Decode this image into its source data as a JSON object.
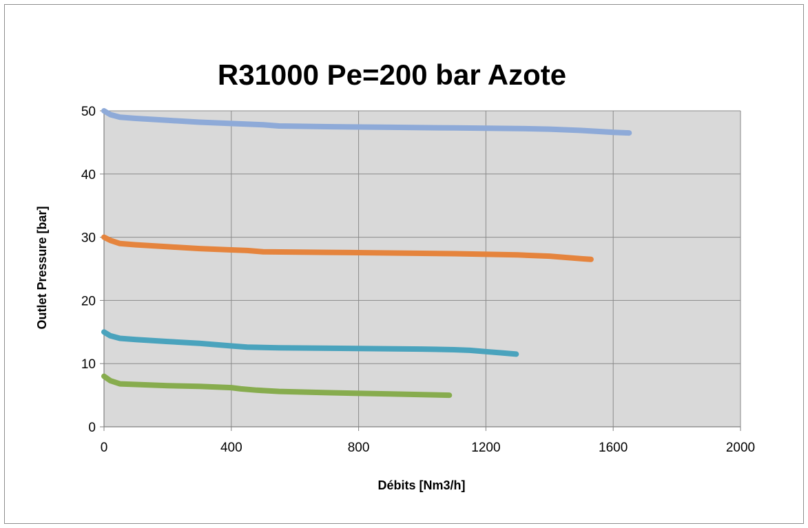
{
  "chart_data": {
    "type": "line",
    "title": "R31000  Pe=200 bar  Azote",
    "xlabel": "Débits [Nm3/h]",
    "ylabel": "Outlet Pressure [bar]",
    "xlim": [
      0,
      2000
    ],
    "ylim": [
      0,
      50
    ],
    "xticks": [
      0,
      400,
      800,
      1200,
      1600,
      2000
    ],
    "yticks": [
      0,
      10,
      20,
      30,
      40,
      50
    ],
    "xtick_labels": [
      "0",
      "400",
      "800",
      "1200",
      "1600",
      "2000"
    ],
    "ytick_labels": [
      "0",
      "10",
      "20",
      "30",
      "40",
      "50"
    ],
    "grid": true,
    "plot_background": "#d9d9d9",
    "series": [
      {
        "color": "#8eaad8",
        "x": [
          0,
          20,
          50,
          100,
          200,
          300,
          400,
          500,
          550,
          700,
          900,
          1100,
          1300,
          1400,
          1500,
          1600,
          1650
        ],
        "y": [
          50,
          49.4,
          49.0,
          48.8,
          48.5,
          48.2,
          48.0,
          47.8,
          47.6,
          47.5,
          47.4,
          47.3,
          47.2,
          47.1,
          46.9,
          46.6,
          46.5
        ]
      },
      {
        "color": "#e5843d",
        "x": [
          0,
          20,
          50,
          100,
          200,
          300,
          400,
          450,
          500,
          700,
          900,
          1100,
          1200,
          1300,
          1400,
          1500,
          1530
        ],
        "y": [
          30,
          29.5,
          29.0,
          28.8,
          28.5,
          28.2,
          28.0,
          27.9,
          27.7,
          27.6,
          27.5,
          27.4,
          27.3,
          27.2,
          27.0,
          26.6,
          26.5
        ]
      },
      {
        "color": "#4aa3bd",
        "x": [
          0,
          20,
          50,
          100,
          200,
          300,
          400,
          450,
          550,
          800,
          1000,
          1100,
          1150,
          1200,
          1250,
          1295
        ],
        "y": [
          15,
          14.4,
          14.0,
          13.8,
          13.5,
          13.2,
          12.8,
          12.6,
          12.5,
          12.4,
          12.3,
          12.2,
          12.1,
          11.9,
          11.7,
          11.5
        ]
      },
      {
        "color": "#87ac4e",
        "x": [
          0,
          20,
          50,
          100,
          200,
          300,
          400,
          430,
          480,
          550,
          700,
          900,
          1000,
          1085
        ],
        "y": [
          8,
          7.3,
          6.8,
          6.7,
          6.5,
          6.4,
          6.2,
          6.0,
          5.8,
          5.6,
          5.4,
          5.2,
          5.1,
          5.0
        ]
      }
    ]
  }
}
